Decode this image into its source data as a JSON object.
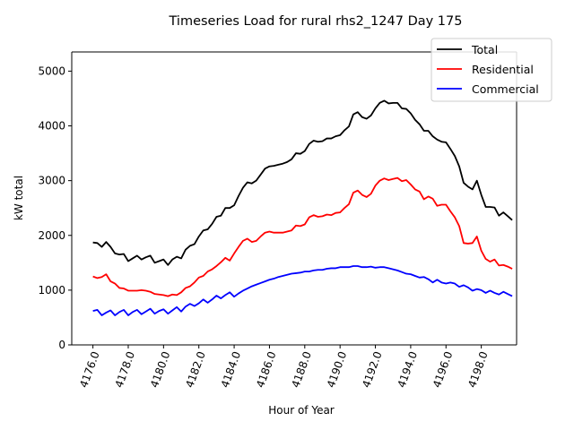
{
  "chart_data": {
    "type": "line",
    "title": "Timeseries Load for rural rhs2_1247  Day 175",
    "xlabel": "Hour of Year",
    "ylabel": "kW total",
    "xlim": [
      4174.8,
      4200.0
    ],
    "ylim": [
      0,
      5350
    ],
    "x_ticks": [
      4176,
      4178,
      4180,
      4182,
      4184,
      4186,
      4188,
      4190,
      4192,
      4194,
      4196,
      4198
    ],
    "x_tick_labels": [
      "4176.0",
      "4178.0",
      "4180.0",
      "4182.0",
      "4184.0",
      "4186.0",
      "4188.0",
      "4190.0",
      "4192.0",
      "4194.0",
      "4196.0",
      "4198.0"
    ],
    "y_ticks": [
      0,
      1000,
      2000,
      3000,
      4000,
      5000
    ],
    "y_tick_labels": [
      "0",
      "1000",
      "2000",
      "3000",
      "4000",
      "5000"
    ],
    "legend_position": "top-right",
    "x": [
      4176.0,
      4176.25,
      4176.5,
      4176.75,
      4177.0,
      4177.25,
      4177.5,
      4177.75,
      4178.0,
      4178.25,
      4178.5,
      4178.75,
      4179.0,
      4179.25,
      4179.5,
      4179.75,
      4180.0,
      4180.25,
      4180.5,
      4180.75,
      4181.0,
      4181.25,
      4181.5,
      4181.75,
      4182.0,
      4182.25,
      4182.5,
      4182.75,
      4183.0,
      4183.25,
      4183.5,
      4183.75,
      4184.0,
      4184.25,
      4184.5,
      4184.75,
      4185.0,
      4185.25,
      4185.5,
      4185.75,
      4186.0,
      4186.25,
      4186.5,
      4186.75,
      4187.0,
      4187.25,
      4187.5,
      4187.75,
      4188.0,
      4188.25,
      4188.5,
      4188.75,
      4189.0,
      4189.25,
      4189.5,
      4189.75,
      4190.0,
      4190.25,
      4190.5,
      4190.75,
      4191.0,
      4191.25,
      4191.5,
      4191.75,
      4192.0,
      4192.25,
      4192.5,
      4192.75,
      4193.0,
      4193.25,
      4193.5,
      4193.75,
      4194.0,
      4194.25,
      4194.5,
      4194.75,
      4195.0,
      4195.25,
      4195.5,
      4195.75,
      4196.0,
      4196.25,
      4196.5,
      4196.75,
      4197.0,
      4197.25,
      4197.5,
      4197.75,
      4198.0,
      4198.25,
      4198.5,
      4198.75,
      4199.0,
      4199.25,
      4199.5,
      4199.75
    ],
    "series": [
      {
        "name": "Total",
        "color": "#000000",
        "values": [
          1870,
          1860,
          1790,
          1880,
          1790,
          1670,
          1650,
          1660,
          1530,
          1580,
          1630,
          1560,
          1600,
          1630,
          1500,
          1530,
          1560,
          1460,
          1560,
          1610,
          1580,
          1740,
          1810,
          1840,
          1980,
          2090,
          2110,
          2210,
          2340,
          2360,
          2500,
          2500,
          2550,
          2720,
          2870,
          2970,
          2950,
          3000,
          3110,
          3220,
          3260,
          3270,
          3290,
          3310,
          3340,
          3390,
          3500,
          3490,
          3540,
          3670,
          3730,
          3710,
          3720,
          3770,
          3770,
          3810,
          3830,
          3920,
          3990,
          4210,
          4250,
          4160,
          4130,
          4190,
          4320,
          4420,
          4460,
          4410,
          4420,
          4420,
          4320,
          4310,
          4230,
          4110,
          4030,
          3910,
          3910,
          3810,
          3750,
          3710,
          3700,
          3580,
          3450,
          3260,
          2960,
          2890,
          2840,
          3000,
          2740,
          2520,
          2520,
          2510,
          2360,
          2420,
          2350,
          2280
        ]
      },
      {
        "name": "Residential",
        "color": "#ff0000",
        "values": [
          1250,
          1220,
          1240,
          1290,
          1160,
          1120,
          1040,
          1030,
          990,
          990,
          990,
          1000,
          990,
          970,
          930,
          920,
          910,
          890,
          920,
          910,
          960,
          1040,
          1070,
          1140,
          1230,
          1260,
          1340,
          1380,
          1440,
          1510,
          1590,
          1540,
          1670,
          1790,
          1900,
          1940,
          1880,
          1900,
          1980,
          2050,
          2070,
          2050,
          2050,
          2050,
          2070,
          2090,
          2180,
          2170,
          2200,
          2330,
          2370,
          2340,
          2350,
          2380,
          2370,
          2410,
          2420,
          2500,
          2570,
          2780,
          2820,
          2740,
          2700,
          2760,
          2910,
          3000,
          3040,
          3010,
          3030,
          3050,
          2990,
          3010,
          2930,
          2840,
          2800,
          2660,
          2710,
          2670,
          2540,
          2560,
          2560,
          2440,
          2330,
          2170,
          1860,
          1850,
          1860,
          1980,
          1720,
          1570,
          1520,
          1560,
          1450,
          1460,
          1430,
          1390
        ]
      },
      {
        "name": "Commercial",
        "color": "#0000ff",
        "values": [
          620,
          640,
          540,
          590,
          630,
          540,
          600,
          640,
          540,
          600,
          640,
          560,
          610,
          660,
          570,
          620,
          650,
          570,
          630,
          690,
          610,
          700,
          750,
          710,
          760,
          830,
          770,
          830,
          900,
          850,
          910,
          960,
          880,
          940,
          990,
          1030,
          1070,
          1100,
          1130,
          1160,
          1190,
          1210,
          1240,
          1260,
          1280,
          1300,
          1310,
          1320,
          1340,
          1340,
          1360,
          1370,
          1370,
          1390,
          1400,
          1400,
          1420,
          1420,
          1420,
          1440,
          1440,
          1420,
          1420,
          1430,
          1410,
          1420,
          1420,
          1400,
          1380,
          1360,
          1330,
          1300,
          1290,
          1260,
          1230,
          1240,
          1200,
          1140,
          1190,
          1140,
          1120,
          1140,
          1120,
          1060,
          1090,
          1050,
          990,
          1020,
          1000,
          950,
          990,
          950,
          920,
          970,
          930,
          890
        ]
      }
    ]
  }
}
